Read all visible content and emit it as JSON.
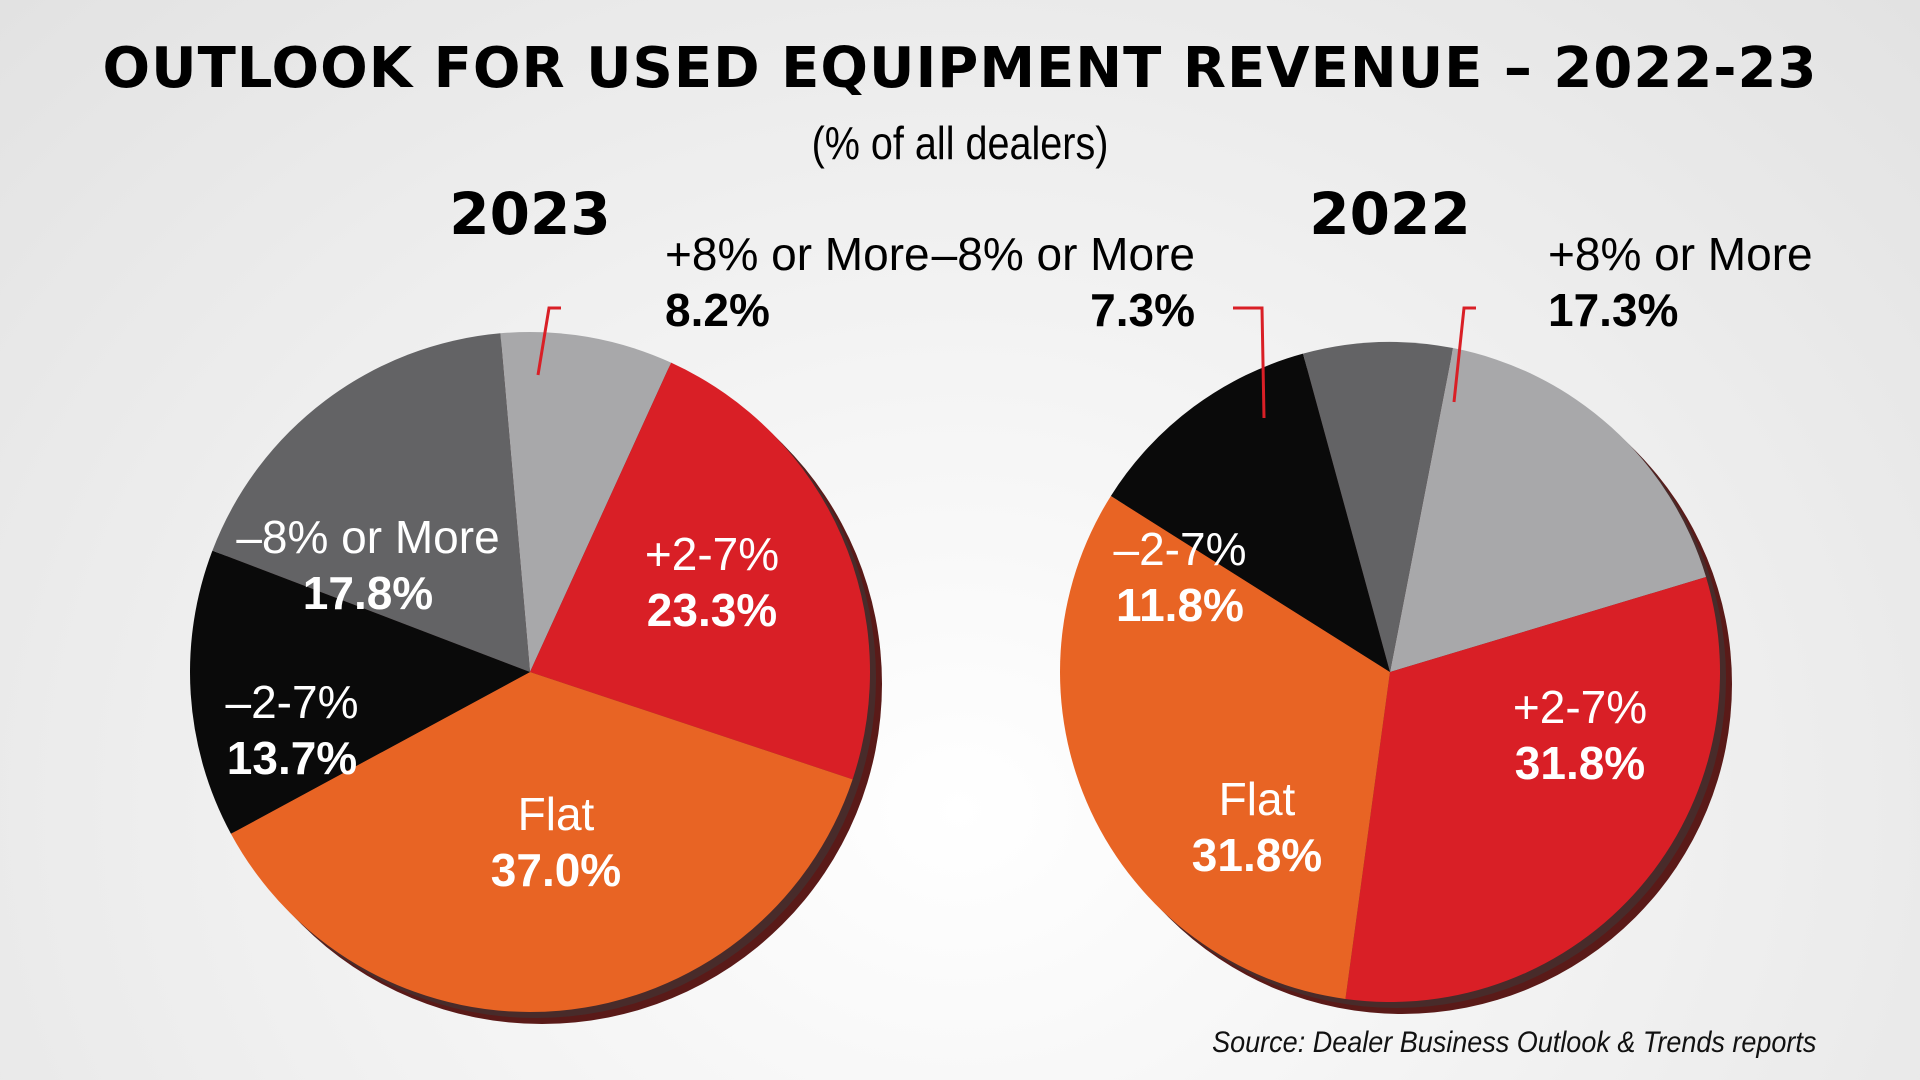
{
  "chart_data": {
    "type": "pie",
    "title": "OUTLOOK FOR USED EQUIPMENT REVENUE – 2022-23",
    "subtitle": "(% of all dealers)",
    "source": "Source: Dealer Business Outlook & Trends reports",
    "charts": [
      {
        "name": "2023",
        "slices": [
          {
            "label": "+8% or More",
            "value": 8.2,
            "value_text": "8.2%",
            "color": "#a8a8aa"
          },
          {
            "label": "+2-7%",
            "value": 23.3,
            "value_text": "23.3%",
            "color": "#d91f26"
          },
          {
            "label": "Flat",
            "value": 37.0,
            "value_text": "37.0%",
            "color": "#e86424"
          },
          {
            "label": "–2-7%",
            "value": 13.7,
            "value_text": "13.7%",
            "color": "#0a0a0a"
          },
          {
            "label": "–8% or More",
            "value": 17.8,
            "value_text": "17.8%",
            "color": "#636365"
          }
        ]
      },
      {
        "name": "2022",
        "slices": [
          {
            "label": "+8% or More",
            "value": 17.3,
            "value_text": "17.3%",
            "color": "#a8a8aa"
          },
          {
            "label": "+2-7%",
            "value": 31.8,
            "value_text": "31.8%",
            "color": "#d91f26"
          },
          {
            "label": "Flat",
            "value": 31.8,
            "value_text": "31.8%",
            "color": "#e86424"
          },
          {
            "label": "–2-7%",
            "value": 11.8,
            "value_text": "11.8%",
            "color": "#0a0a0a"
          },
          {
            "label": "–8% or More",
            "value": 7.3,
            "value_text": "7.3%",
            "color": "#636365"
          }
        ]
      }
    ],
    "leader_line_color": "#d91f26"
  }
}
